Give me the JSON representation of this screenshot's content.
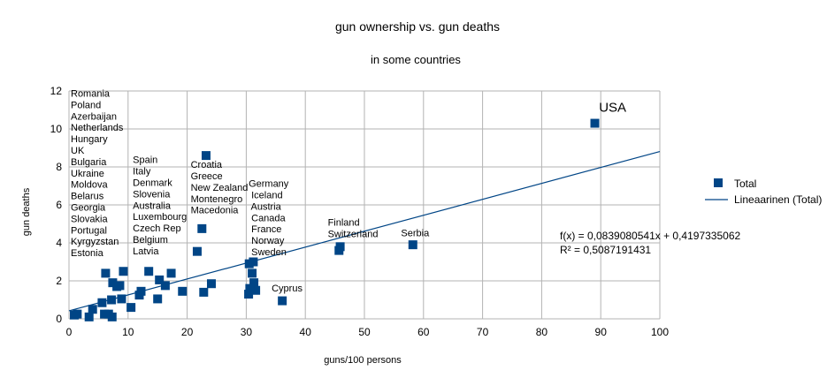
{
  "chart_data": {
    "type": "scatter",
    "title": "gun ownership vs. gun deaths",
    "subtitle": "in some countries",
    "xlabel": "guns/100 persons",
    "ylabel": "gun deaths",
    "xlim": [
      0,
      100
    ],
    "ylim": [
      0,
      12
    ],
    "xticks": [
      0,
      10,
      20,
      30,
      40,
      50,
      60,
      70,
      80,
      90,
      100
    ],
    "yticks": [
      0,
      2,
      4,
      6,
      8,
      10,
      12
    ],
    "grid": true,
    "legend_position": "right",
    "colors": {
      "marker": "#004586",
      "trendline": "#004586",
      "grid": "#b3b3b3"
    },
    "series": [
      {
        "name": "Total",
        "marker": "square",
        "points": [
          [
            89.0,
            10.3
          ],
          [
            58.2,
            3.9
          ],
          [
            45.7,
            3.6
          ],
          [
            45.9,
            3.8
          ],
          [
            36.1,
            0.95
          ],
          [
            31.6,
            1.5
          ],
          [
            31.3,
            1.9
          ],
          [
            31.0,
            2.4
          ],
          [
            31.2,
            3.0
          ],
          [
            30.5,
            2.9
          ],
          [
            30.6,
            1.6
          ],
          [
            30.4,
            1.3
          ],
          [
            24.1,
            1.85
          ],
          [
            23.2,
            8.6
          ],
          [
            22.5,
            4.75
          ],
          [
            21.7,
            3.55
          ],
          [
            22.8,
            1.4
          ],
          [
            19.2,
            1.45
          ],
          [
            17.3,
            2.4
          ],
          [
            16.3,
            1.75
          ],
          [
            15.3,
            2.05
          ],
          [
            15.0,
            1.05
          ],
          [
            13.5,
            2.5
          ],
          [
            12.2,
            1.45
          ],
          [
            11.9,
            1.25
          ],
          [
            10.5,
            0.6
          ],
          [
            9.2,
            2.5
          ],
          [
            8.9,
            1.05
          ],
          [
            8.6,
            1.75
          ],
          [
            8.1,
            1.7
          ],
          [
            7.4,
            1.9
          ],
          [
            6.7,
            0.25
          ],
          [
            7.2,
            1.0
          ],
          [
            7.3,
            0.1
          ],
          [
            6.2,
            2.4
          ],
          [
            6.0,
            0.25
          ],
          [
            5.6,
            0.85
          ],
          [
            4.0,
            0.5
          ],
          [
            3.4,
            0.1
          ],
          [
            1.4,
            0.25
          ],
          [
            0.9,
            0.2
          ]
        ]
      }
    ],
    "trendline": {
      "name": "Lineaarinen (Total)",
      "slope": 0.0839080541,
      "intercept": 0.4197335062,
      "equation": "f(x) = 0,0839080541x + 0,4197335062",
      "r2": "R² = 0,5087191431"
    },
    "annotations": [
      {
        "label": "USA",
        "class": "usa",
        "x": 89.7,
        "y": 10.9,
        "lines": [
          "USA"
        ]
      },
      {
        "label": "group-low",
        "class": "ann",
        "x": 0.3,
        "y": 11.7,
        "lines": [
          "Romania",
          "Poland",
          "Azerbaijan",
          "Netherlands",
          "Hungary",
          "UK",
          "Bulgaria",
          "Ukraine",
          "Moldova",
          "Belarus",
          "Georgia",
          "Slovakia",
          "Portugal",
          "Kyrgyzstan",
          "Estonia"
        ]
      },
      {
        "label": "group-mid",
        "class": "ann",
        "x": 10.8,
        "y": 8.2,
        "lines": [
          "Spain",
          "Italy",
          "Denmark",
          "Slovenia",
          "Australia",
          "Luxembourg",
          "Czech Rep",
          "Belgium",
          "Latvia"
        ]
      },
      {
        "label": "group-balkan",
        "class": "ann",
        "x": 20.6,
        "y": 7.95,
        "lines": [
          "Croatia",
          "Greece",
          "New Zealand",
          "Montenegro",
          "Macedonia"
        ]
      },
      {
        "label": "group-west",
        "class": "ann",
        "x": 30.4,
        "y": 6.95,
        "lines": [
          "Germany",
          " Iceland",
          " Austria",
          " Canada",
          " France",
          " Norway",
          " Sweden"
        ]
      },
      {
        "label": "group-nordic",
        "class": "ann",
        "x": 43.8,
        "y": 4.9,
        "lines": [
          "Finland",
          "Switzerland"
        ]
      },
      {
        "label": "serbia",
        "class": "ann",
        "x": 56.2,
        "y": 4.35,
        "lines": [
          "Serbia"
        ]
      },
      {
        "label": "cyprus",
        "class": "ann",
        "x": 34.3,
        "y": 1.45,
        "lines": [
          "Cyprus"
        ]
      }
    ]
  }
}
